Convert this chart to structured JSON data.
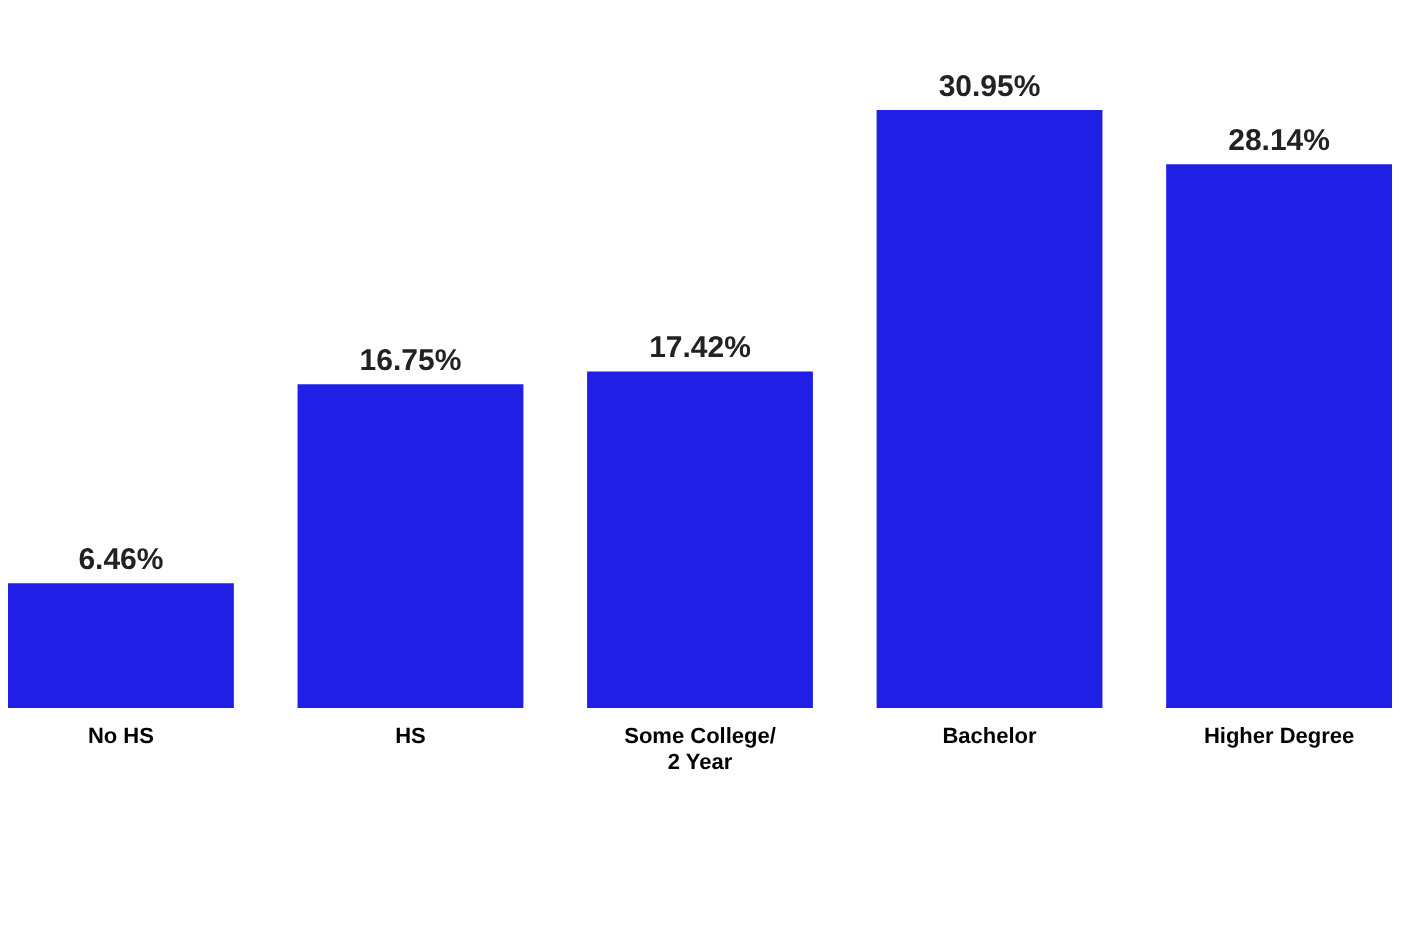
{
  "chart_data": {
    "type": "bar",
    "categories": [
      "No HS",
      "HS",
      "Some College/ 2 Year",
      "Bachelor",
      "Higher Degree"
    ],
    "values": [
      6.46,
      16.75,
      17.42,
      30.95,
      28.14
    ],
    "value_labels": [
      "6.46%",
      "16.75%",
      "17.42%",
      "30.95%",
      "28.14%"
    ],
    "color": "#1f1fe6",
    "grid": false,
    "tick_labels": "x"
  }
}
